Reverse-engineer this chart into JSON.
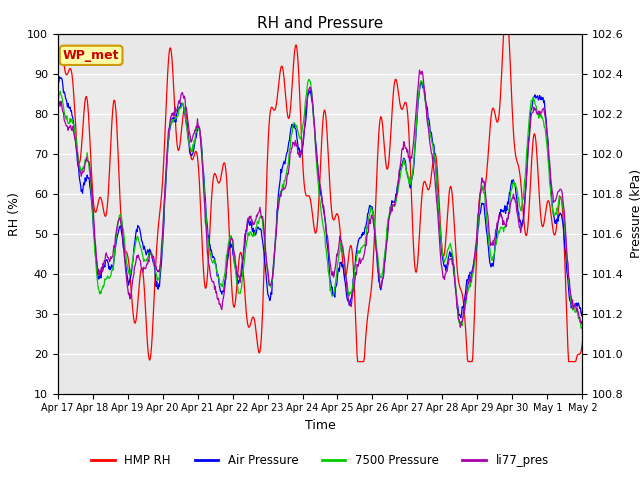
{
  "title": "RH and Pressure",
  "xlabel": "Time",
  "ylabel_left": "RH (%)",
  "ylabel_right": "Pressure (kPa)",
  "ylim_left": [
    10,
    100
  ],
  "ylim_right": [
    100.8,
    102.6
  ],
  "annotation": "WP_met",
  "x_tick_labels": [
    "Apr 17",
    "Apr 18",
    "Apr 19",
    "Apr 20",
    "Apr 21",
    "Apr 22",
    "Apr 23",
    "Apr 24",
    "Apr 25",
    "Apr 26",
    "Apr 27",
    "Apr 28",
    "Apr 29",
    "Apr 30",
    "May 1",
    "May 2"
  ],
  "legend": [
    "HMP RH",
    "Air Pressure",
    "7500 Pressure",
    "li77_pres"
  ],
  "line_colors": [
    "#ff0000",
    "#0000ff",
    "#00cc00",
    "#aa00aa"
  ],
  "fig_bg": "#ffffff",
  "plot_bg": "#e8e8e8",
  "band_color": "#d0d0d0",
  "grid_color": "#ffffff",
  "n_points": 800
}
